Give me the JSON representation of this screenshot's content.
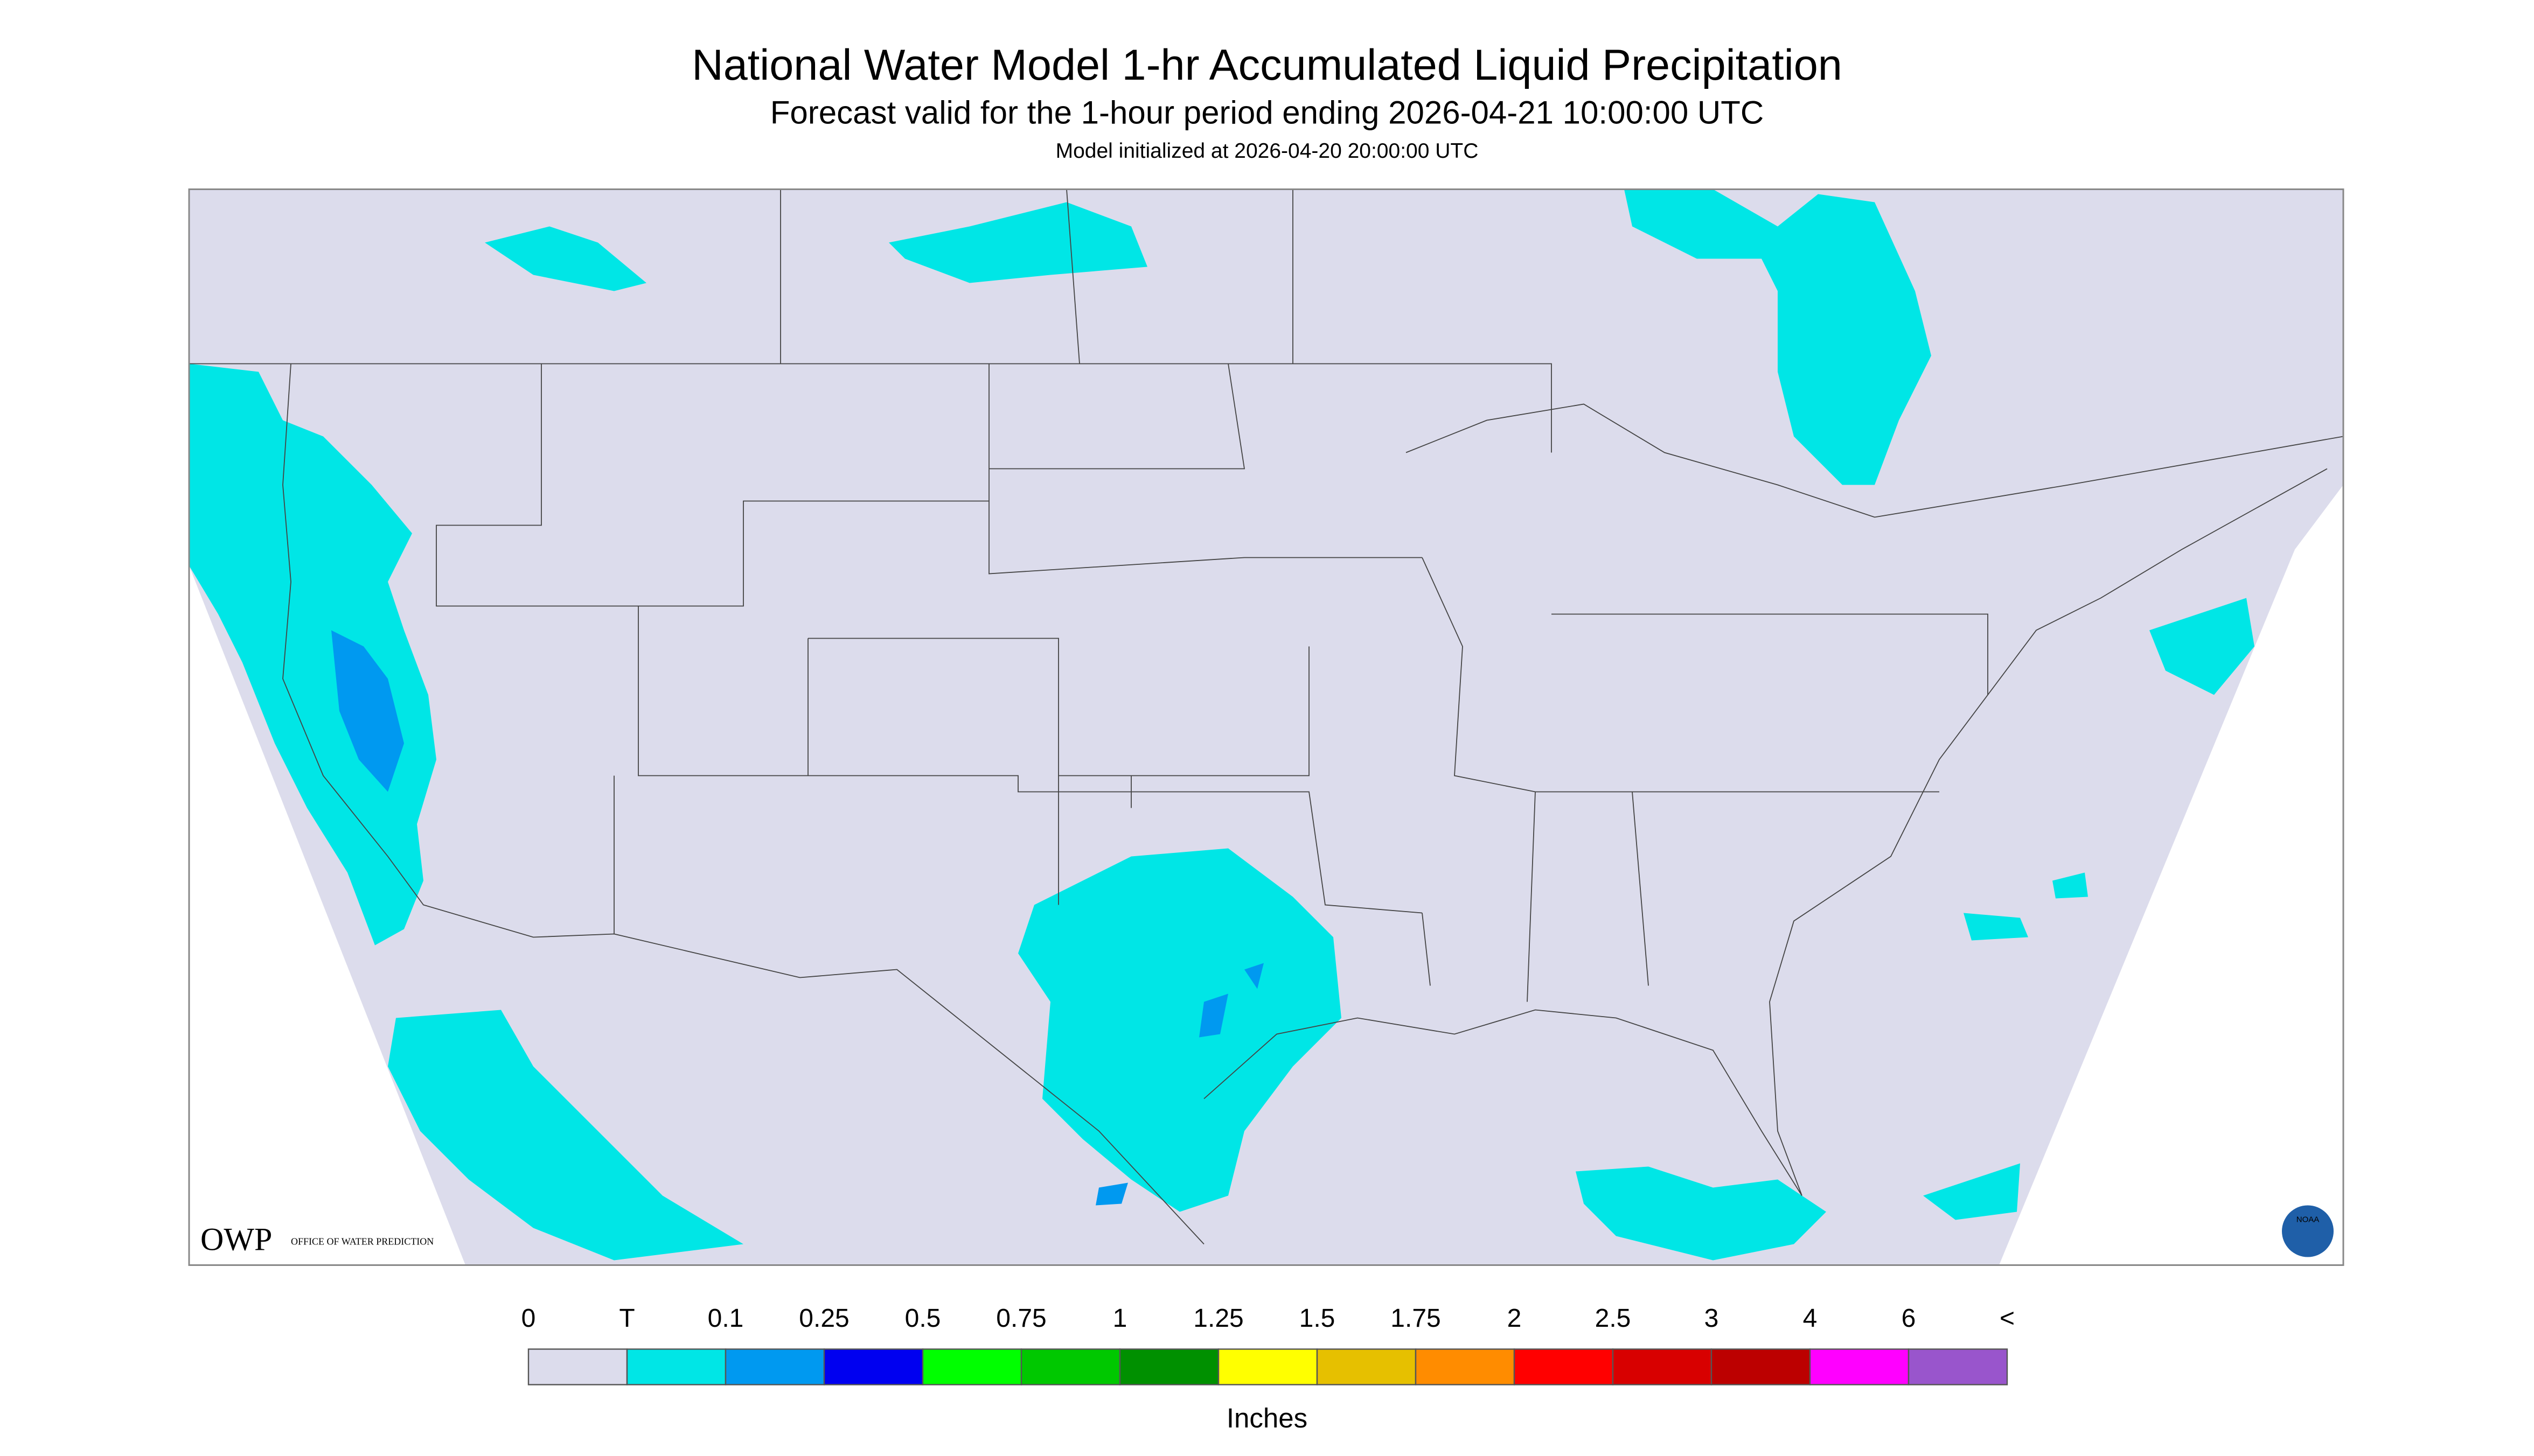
{
  "header": {
    "title": "National Water Model 1-hr Accumulated Liquid Precipitation",
    "subtitle": "Forecast valid for the 1-hour period ending 2026-04-21 10:00:00 UTC",
    "init": "Model initialized at 2026-04-20 20:00:00 UTC"
  },
  "logo": {
    "name": "OWP",
    "text": "OFFICE OF WATER PREDICTION",
    "agency": "NOAA"
  },
  "legend": {
    "labels": [
      "0",
      "T",
      "0.1",
      "0.25",
      "0.5",
      "0.75",
      "1",
      "1.25",
      "1.5",
      "1.75",
      "2",
      "2.5",
      "3",
      "4",
      "6",
      "<"
    ],
    "colors": [
      "#dcdcec",
      "#00e6e6",
      "#0099f0",
      "#0000f0",
      "#00ff00",
      "#00c800",
      "#009000",
      "#ffff00",
      "#e6c000",
      "#ff8c00",
      "#ff0000",
      "#d80000",
      "#bc0000",
      "#ff00ff",
      "#9955cc"
    ],
    "units": "Inches"
  }
}
